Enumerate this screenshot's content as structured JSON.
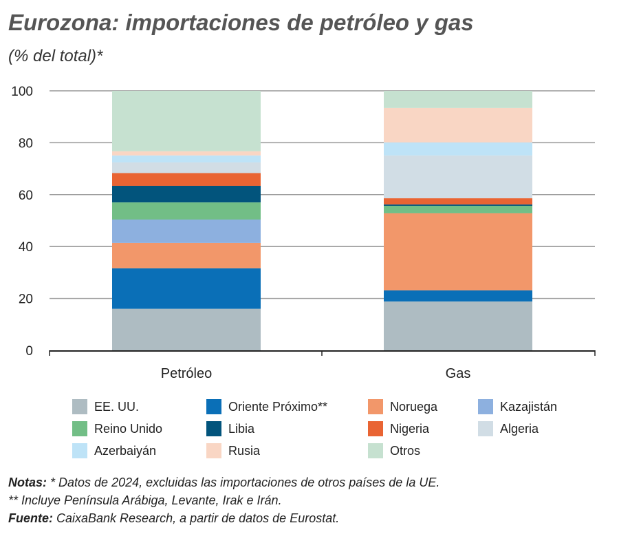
{
  "chart_data": {
    "type": "bar",
    "stacked": true,
    "title": "Eurozona: importaciones de petróleo y gas",
    "subtitle": "(% del total)*",
    "categories": [
      "Petróleo",
      "Gas"
    ],
    "ylim": [
      0,
      100
    ],
    "yticks": [
      0,
      20,
      40,
      60,
      80,
      100
    ],
    "grid": true,
    "legend_position": "bottom",
    "series": [
      {
        "name": "EE. UU.",
        "color": "#aebcc2",
        "values": [
          16,
          18.8
        ]
      },
      {
        "name": "Oriente Próximo**",
        "color": "#0a6fb7",
        "values": [
          15.6,
          4.3
        ]
      },
      {
        "name": "Noruega",
        "color": "#f2976a",
        "values": [
          9.8,
          29.7
        ]
      },
      {
        "name": "Kazajistán",
        "color": "#8db0df",
        "values": [
          9,
          0
        ]
      },
      {
        "name": "Reino Unido",
        "color": "#72be86",
        "values": [
          6.6,
          2.9
        ]
      },
      {
        "name": "Libia",
        "color": "#02547c",
        "values": [
          6.4,
          0.5
        ]
      },
      {
        "name": "Nigeria",
        "color": "#e96433",
        "values": [
          4.9,
          2.4
        ]
      },
      {
        "name": "Algeria",
        "color": "#d1dde5",
        "values": [
          4.1,
          16.5
        ]
      },
      {
        "name": "Azerbaiyán",
        "color": "#bee3f7",
        "values": [
          2.7,
          5
        ]
      },
      {
        "name": "Rusia",
        "color": "#f9d6c4",
        "values": [
          1.6,
          13.3
        ]
      },
      {
        "name": "Otros",
        "color": "#c6e1d0",
        "values": [
          23.3,
          6.6
        ]
      }
    ]
  },
  "notes": {
    "notas_label": "Notas:",
    "notas_text": " * Datos de 2024, excluidas las importaciones de otros países de la UE.",
    "line2": "** Incluye Península Arábiga, Levante, Irak e Irán.",
    "fuente_label": "Fuente:",
    "fuente_text": " CaixaBank Research, a partir de datos de Eurostat."
  }
}
